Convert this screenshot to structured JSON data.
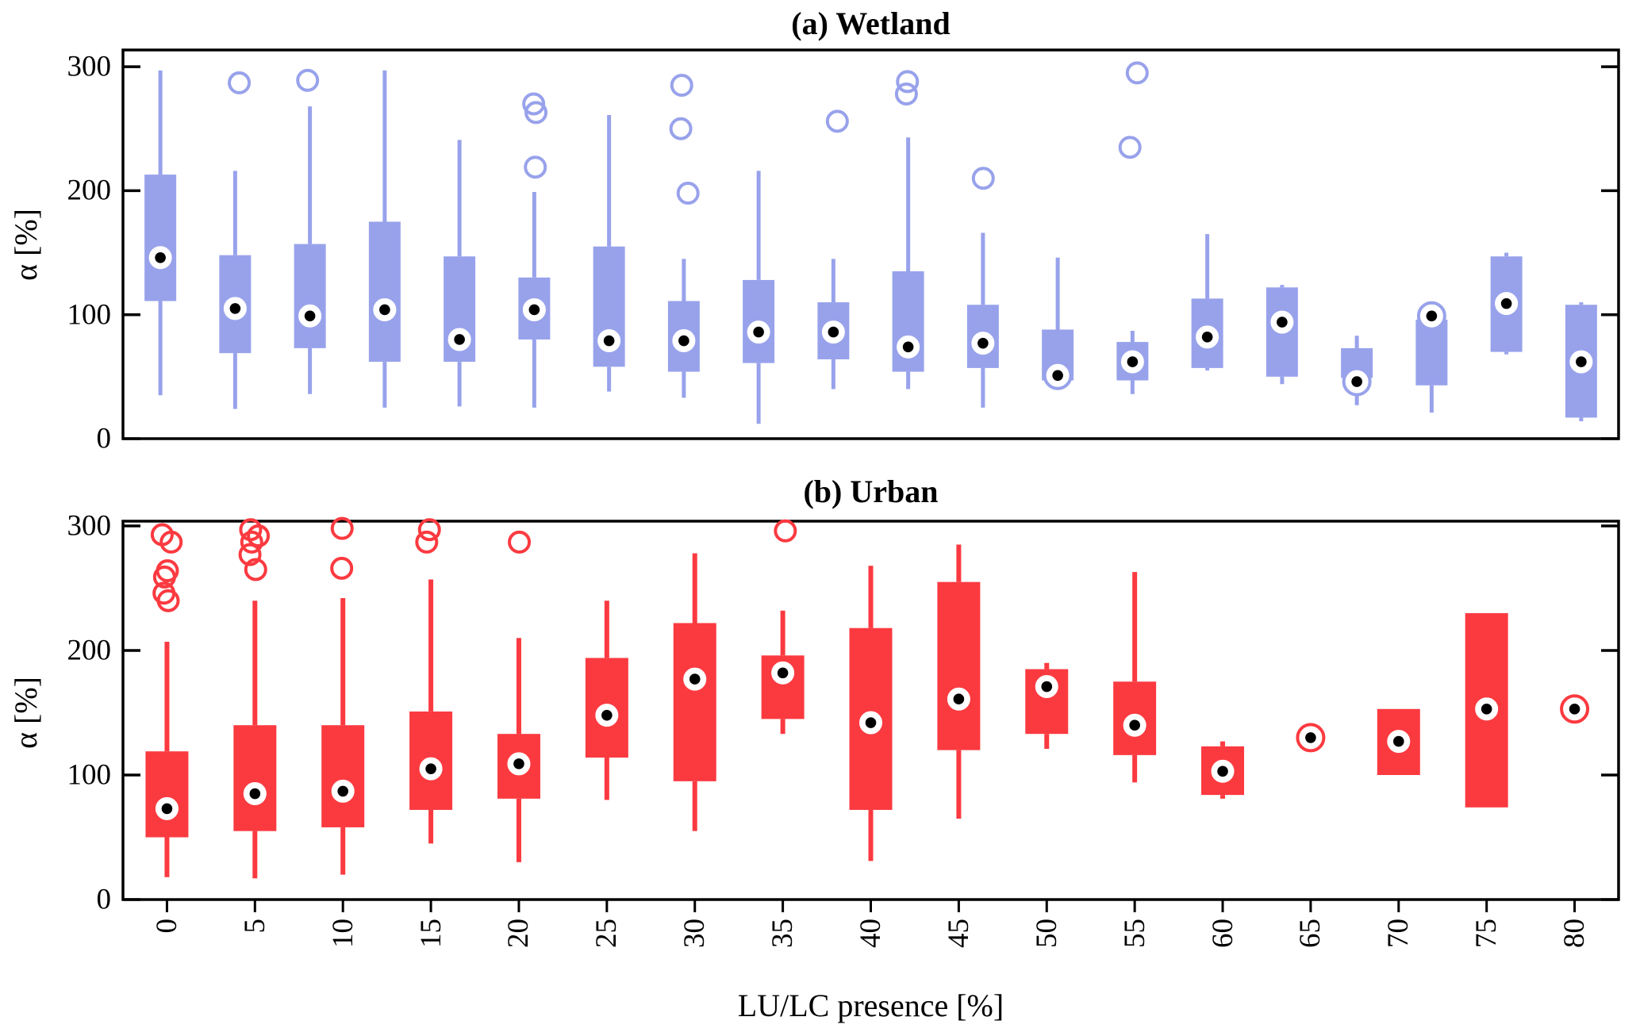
{
  "figure": {
    "kind": "two-panel boxplot figure"
  },
  "panel_a": {
    "title": "(a) Wetland",
    "ylabel": "α [%]"
  },
  "panel_b": {
    "title": "(b) Urban",
    "ylabel": "α [%]"
  },
  "x_axis": {
    "label": "LU/LC presence [%]"
  },
  "chart_data": {
    "type": "boxplot",
    "title": "",
    "xlabel": "LU/LC presence [%]",
    "ylabel": "α [%]",
    "x_tick_labels": [
      "0",
      "5",
      "10",
      "15",
      "20",
      "25",
      "30",
      "35",
      "40",
      "45",
      "50",
      "55",
      "60",
      "65",
      "70",
      "75",
      "80"
    ],
    "y_tick_labels": [
      "0",
      "100",
      "200",
      "300"
    ],
    "yticks": [
      0,
      100,
      200,
      300
    ],
    "legend": "none",
    "grid": false,
    "panels": [
      {
        "id": "a",
        "title": "(a) Wetland",
        "color": "#98A2EB",
        "ylim": [
          0,
          314
        ],
        "n_groups": 20,
        "note_groups": "20 unlabeled box groups evenly spaced across the shared x-axis",
        "boxes": [
          {
            "lo": 35,
            "q1": 111,
            "med": 146,
            "q3": 213,
            "hi": 297,
            "out": []
          },
          {
            "lo": 24,
            "q1": 69,
            "med": 105,
            "q3": 148,
            "hi": 216,
            "out": [
              287
            ]
          },
          {
            "lo": 36,
            "q1": 73,
            "med": 99,
            "q3": 157,
            "hi": 268,
            "out": [
              289
            ]
          },
          {
            "lo": 25,
            "q1": 62,
            "med": 104,
            "q3": 175,
            "hi": 297,
            "out": []
          },
          {
            "lo": 26,
            "q1": 62,
            "med": 80,
            "q3": 147,
            "hi": 241,
            "out": []
          },
          {
            "lo": 25,
            "q1": 80,
            "med": 104,
            "q3": 130,
            "hi": 199,
            "out": [
              219,
              263,
              270
            ]
          },
          {
            "lo": 38,
            "q1": 58,
            "med": 79,
            "q3": 155,
            "hi": 261,
            "out": []
          },
          {
            "lo": 33,
            "q1": 54,
            "med": 79,
            "q3": 111,
            "hi": 145,
            "out": [
              198,
              250,
              285
            ]
          },
          {
            "lo": 12,
            "q1": 61,
            "med": 86,
            "q3": 128,
            "hi": 216,
            "out": []
          },
          {
            "lo": 40,
            "q1": 64,
            "med": 86,
            "q3": 110,
            "hi": 145,
            "out": [
              256
            ]
          },
          {
            "lo": 40,
            "q1": 54,
            "med": 74,
            "q3": 135,
            "hi": 243,
            "out": [
              278,
              288
            ]
          },
          {
            "lo": 25,
            "q1": 57,
            "med": 77,
            "q3": 108,
            "hi": 166,
            "out": [
              210
            ]
          },
          {
            "lo": 42,
            "q1": 47,
            "med": 51,
            "q3": 88,
            "hi": 146,
            "out": []
          },
          {
            "lo": 36,
            "q1": 47,
            "med": 62,
            "q3": 78,
            "hi": 87,
            "out": [
              235,
              295
            ]
          },
          {
            "lo": 55,
            "q1": 57,
            "med": 82,
            "q3": 113,
            "hi": 165,
            "out": []
          },
          {
            "lo": 44,
            "q1": 50,
            "med": 94,
            "q3": 122,
            "hi": 124,
            "out": []
          },
          {
            "lo": 27,
            "q1": 49,
            "med": 46,
            "q3": 73,
            "hi": 83,
            "out": []
          },
          {
            "lo": 21,
            "q1": 43,
            "med": 99,
            "q3": 96,
            "hi": 96,
            "out": []
          },
          {
            "lo": 68,
            "q1": 70,
            "med": 109,
            "q3": 147,
            "hi": 150,
            "out": []
          },
          {
            "lo": 14,
            "q1": 17,
            "med": 62,
            "q3": 108,
            "hi": 110,
            "out": []
          }
        ]
      },
      {
        "id": "b",
        "title": "(b) Urban",
        "color": "#FB3A40",
        "ylim": [
          0,
          304
        ],
        "n_groups": 17,
        "categories": [
          0,
          5,
          10,
          15,
          20,
          25,
          30,
          35,
          40,
          45,
          50,
          55,
          60,
          65,
          70,
          75,
          80
        ],
        "boxes": [
          {
            "lo": 18,
            "q1": 50,
            "med": 73,
            "q3": 119,
            "hi": 207,
            "out": [
              240,
              246,
              259,
              264,
              287,
              293
            ]
          },
          {
            "lo": 17,
            "q1": 55,
            "med": 85,
            "q3": 140,
            "hi": 240,
            "out": [
              265,
              277,
              287,
              292,
              297
            ]
          },
          {
            "lo": 20,
            "q1": 58,
            "med": 87,
            "q3": 140,
            "hi": 242,
            "out": [
              266,
              298
            ]
          },
          {
            "lo": 45,
            "q1": 72,
            "med": 105,
            "q3": 151,
            "hi": 257,
            "out": [
              287,
              297
            ]
          },
          {
            "lo": 30,
            "q1": 81,
            "med": 109,
            "q3": 133,
            "hi": 210,
            "out": [
              287
            ]
          },
          {
            "lo": 80,
            "q1": 114,
            "med": 148,
            "q3": 194,
            "hi": 240,
            "out": []
          },
          {
            "lo": 55,
            "q1": 95,
            "med": 177,
            "q3": 222,
            "hi": 278,
            "out": []
          },
          {
            "lo": 133,
            "q1": 145,
            "med": 182,
            "q3": 196,
            "hi": 232,
            "out": [
              296
            ]
          },
          {
            "lo": 31,
            "q1": 72,
            "med": 142,
            "q3": 218,
            "hi": 268,
            "out": []
          },
          {
            "lo": 65,
            "q1": 120,
            "med": 161,
            "q3": 255,
            "hi": 285,
            "out": []
          },
          {
            "lo": 121,
            "q1": 133,
            "med": 171,
            "q3": 185,
            "hi": 190,
            "out": []
          },
          {
            "lo": 94,
            "q1": 116,
            "med": 140,
            "q3": 175,
            "hi": 263,
            "out": []
          },
          {
            "lo": 81,
            "q1": 84,
            "med": 103,
            "q3": 123,
            "hi": 127,
            "out": []
          },
          {
            "lo": 130,
            "q1": 130,
            "med": 130,
            "q3": 130,
            "hi": 130,
            "out": []
          },
          {
            "lo": 100,
            "q1": 100,
            "med": 127,
            "q3": 153,
            "hi": 153,
            "out": []
          },
          {
            "lo": 74,
            "q1": 74,
            "med": 153,
            "q3": 230,
            "hi": 230,
            "out": []
          },
          {
            "lo": 153,
            "q1": 153,
            "med": 153,
            "q3": 153,
            "hi": 153,
            "out": []
          }
        ]
      }
    ]
  },
  "colors": {
    "wetland": "#98A2EB",
    "urban": "#FB3A40",
    "frame": "#000000",
    "background": "#ffffff",
    "marker_dot": "#000000",
    "marker_face": "#ffffff"
  }
}
